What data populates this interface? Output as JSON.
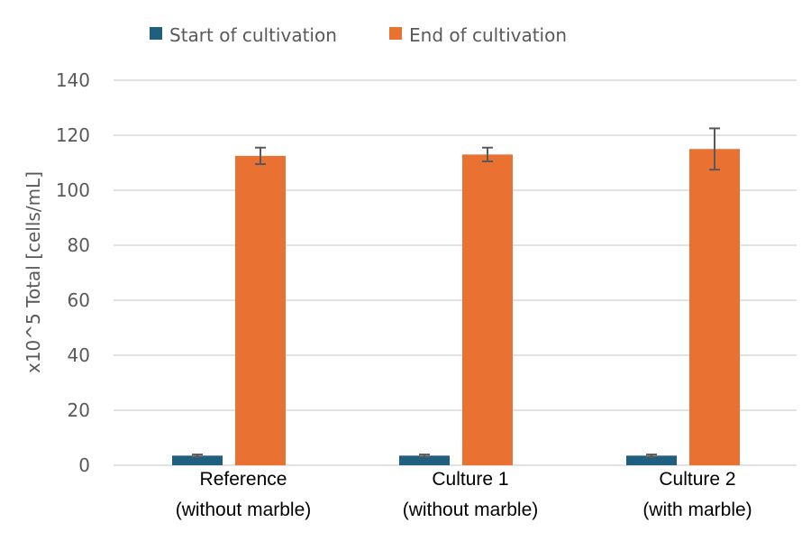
{
  "chart_data": {
    "type": "bar",
    "categories": [
      [
        "Reference",
        "(without marble)"
      ],
      [
        "Culture 1",
        "(without marble)"
      ],
      [
        "Culture 2",
        "(with marble)"
      ]
    ],
    "series": [
      {
        "name": "Start of cultivation",
        "values": [
          3.5,
          3.5,
          3.5
        ],
        "errors": [
          0.4,
          0.4,
          0.4
        ],
        "color": "#1f5f7f"
      },
      {
        "name": "End of cultivation",
        "values": [
          112.5,
          113,
          115
        ],
        "errors": [
          3,
          2.5,
          7.5
        ],
        "color": "#e97132"
      }
    ],
    "ylabel": "x10^5 Total [cells/mL]",
    "ylim": [
      0,
      140
    ],
    "yticks": [
      0,
      20,
      40,
      60,
      80,
      100,
      120,
      140
    ],
    "grid": true,
    "legend_position": "top",
    "colors": {
      "gridline": "#d9d9d9",
      "error_bar": "#595959",
      "text": "#595959"
    }
  }
}
